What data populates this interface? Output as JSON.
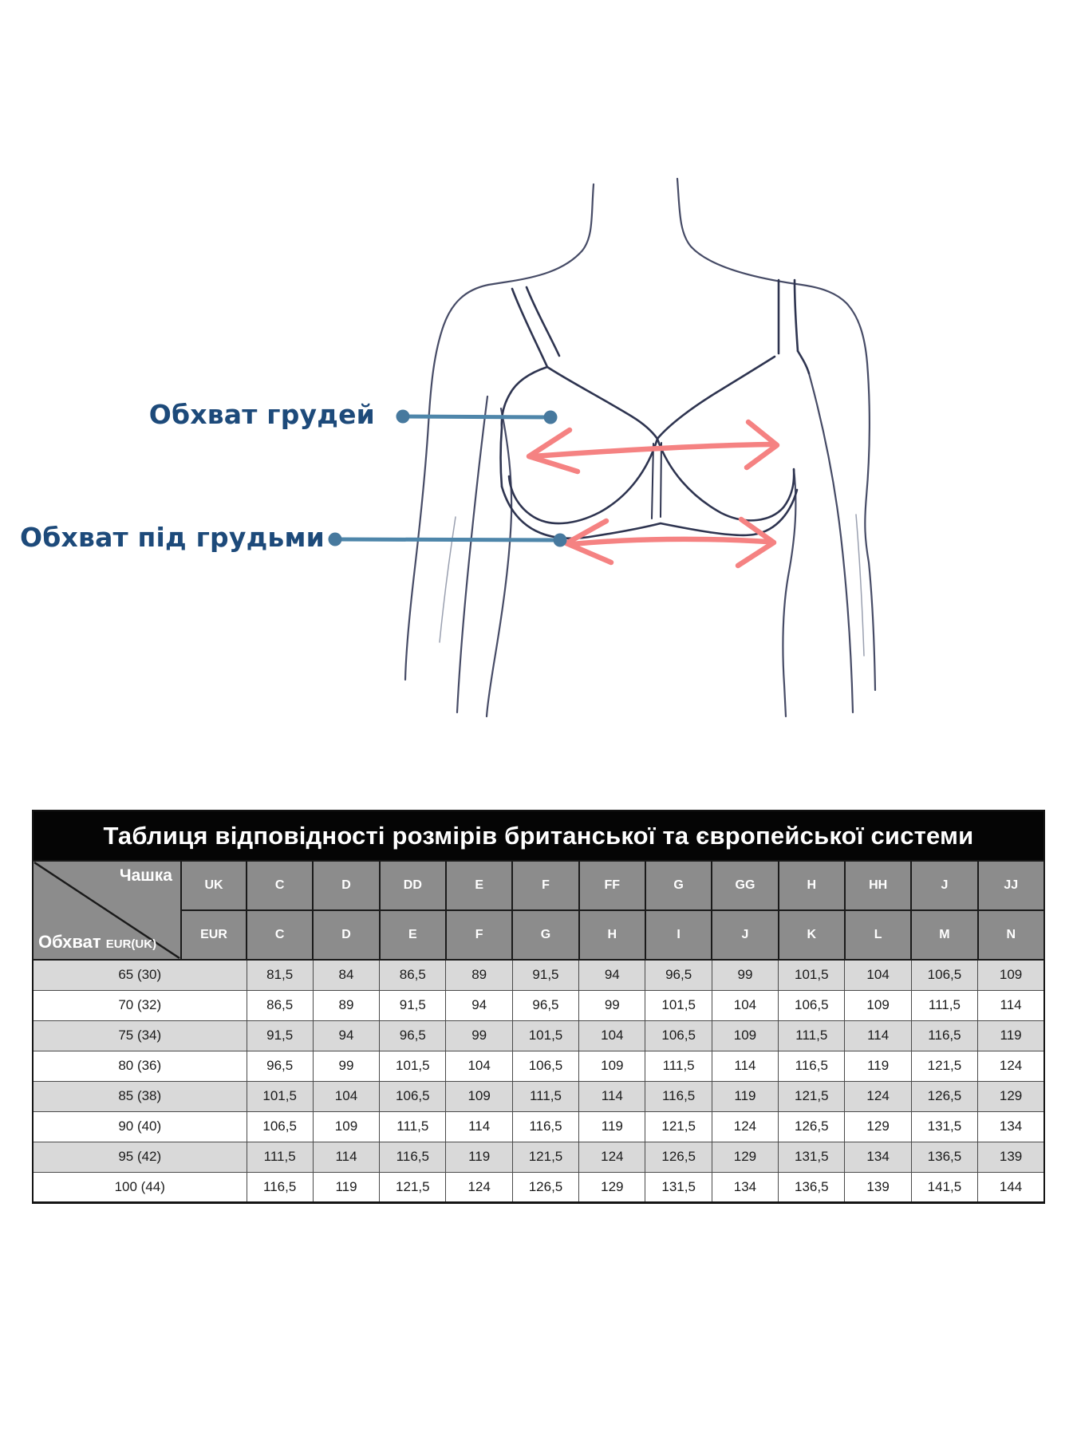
{
  "diagram": {
    "bust_label": "Обхват грудей",
    "underbust_label": "Обхват під грудьми",
    "icons": [
      "connector-dot",
      "measure-arrow-double"
    ]
  },
  "table": {
    "title": "Таблиця відповідності розмірів британської та європейської системи",
    "corner": {
      "cup_label": "Чашка",
      "girth_label": "Обхват",
      "girth_sub": "EUR(UK)"
    },
    "uk_label": "UK",
    "eur_label": "EUR",
    "uk_cups": [
      "C",
      "D",
      "DD",
      "E",
      "F",
      "FF",
      "G",
      "GG",
      "H",
      "HH",
      "J",
      "JJ"
    ],
    "eur_cups": [
      "C",
      "D",
      "E",
      "F",
      "G",
      "H",
      "I",
      "J",
      "K",
      "L",
      "M",
      "N"
    ],
    "rows": [
      {
        "band": "65 (30)",
        "values": [
          "81,5",
          "84",
          "86,5",
          "89",
          "91,5",
          "94",
          "96,5",
          "99",
          "101,5",
          "104",
          "106,5",
          "109"
        ]
      },
      {
        "band": "70 (32)",
        "values": [
          "86,5",
          "89",
          "91,5",
          "94",
          "96,5",
          "99",
          "101,5",
          "104",
          "106,5",
          "109",
          "111,5",
          "114"
        ]
      },
      {
        "band": "75 (34)",
        "values": [
          "91,5",
          "94",
          "96,5",
          "99",
          "101,5",
          "104",
          "106,5",
          "109",
          "111,5",
          "114",
          "116,5",
          "119"
        ]
      },
      {
        "band": "80 (36)",
        "values": [
          "96,5",
          "99",
          "101,5",
          "104",
          "106,5",
          "109",
          "111,5",
          "114",
          "116,5",
          "119",
          "121,5",
          "124"
        ]
      },
      {
        "band": "85 (38)",
        "values": [
          "101,5",
          "104",
          "106,5",
          "109",
          "111,5",
          "114",
          "116,5",
          "119",
          "121,5",
          "124",
          "126,5",
          "129"
        ]
      },
      {
        "band": "90 (40)",
        "values": [
          "106,5",
          "109",
          "111,5",
          "114",
          "116,5",
          "119",
          "121,5",
          "124",
          "126,5",
          "129",
          "131,5",
          "134"
        ]
      },
      {
        "band": "95 (42)",
        "values": [
          "111,5",
          "114",
          "116,5",
          "119",
          "121,5",
          "124",
          "126,5",
          "129",
          "131,5",
          "134",
          "136,5",
          "139"
        ]
      },
      {
        "band": "100 (44)",
        "values": [
          "116,5",
          "119",
          "121,5",
          "124",
          "126,5",
          "129",
          "131,5",
          "134",
          "136,5",
          "139",
          "141,5",
          "144"
        ]
      }
    ]
  },
  "colors": {
    "accent_blue": "#4e86aa",
    "label_blue": "#1d4a7a",
    "arrow_red": "#f58282",
    "body_outline": "#464b66",
    "bra_line": "#2e3450",
    "header_bg": "#8c8c8c",
    "alt_row_bg": "#d9d9d9",
    "title_bg": "#050505"
  }
}
